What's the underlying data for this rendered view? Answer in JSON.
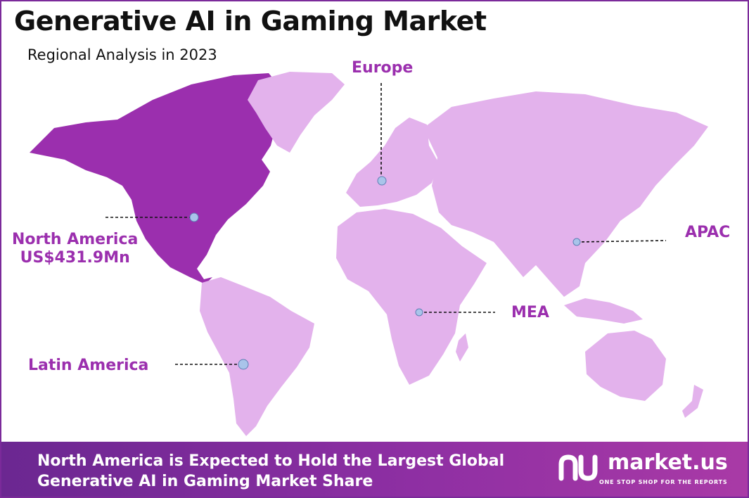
{
  "header": {
    "title": "Generative AI in Gaming Market",
    "subtitle": "Regional Analysis in 2023"
  },
  "regions": {
    "north_america": {
      "name": "North America",
      "value": "US$431.9Mn"
    },
    "europe": {
      "name": "Europe"
    },
    "apac": {
      "name": "APAC"
    },
    "mea": {
      "name": "MEA"
    },
    "latin_america": {
      "name": "Latin America"
    }
  },
  "footer": {
    "line1": "North America is Expected to Hold the Largest Global",
    "line2": "Generative AI in Gaming Market Share"
  },
  "brand": {
    "name": "market.us",
    "tagline": "ONE STOP SHOP FOR THE REPORTS"
  },
  "colors": {
    "highlight_region": "#9b2fae",
    "other_regions": "#e3b2ec",
    "label": "#9b2fae",
    "marker": "#a9c4ea",
    "footer": "#7b2a9a"
  }
}
